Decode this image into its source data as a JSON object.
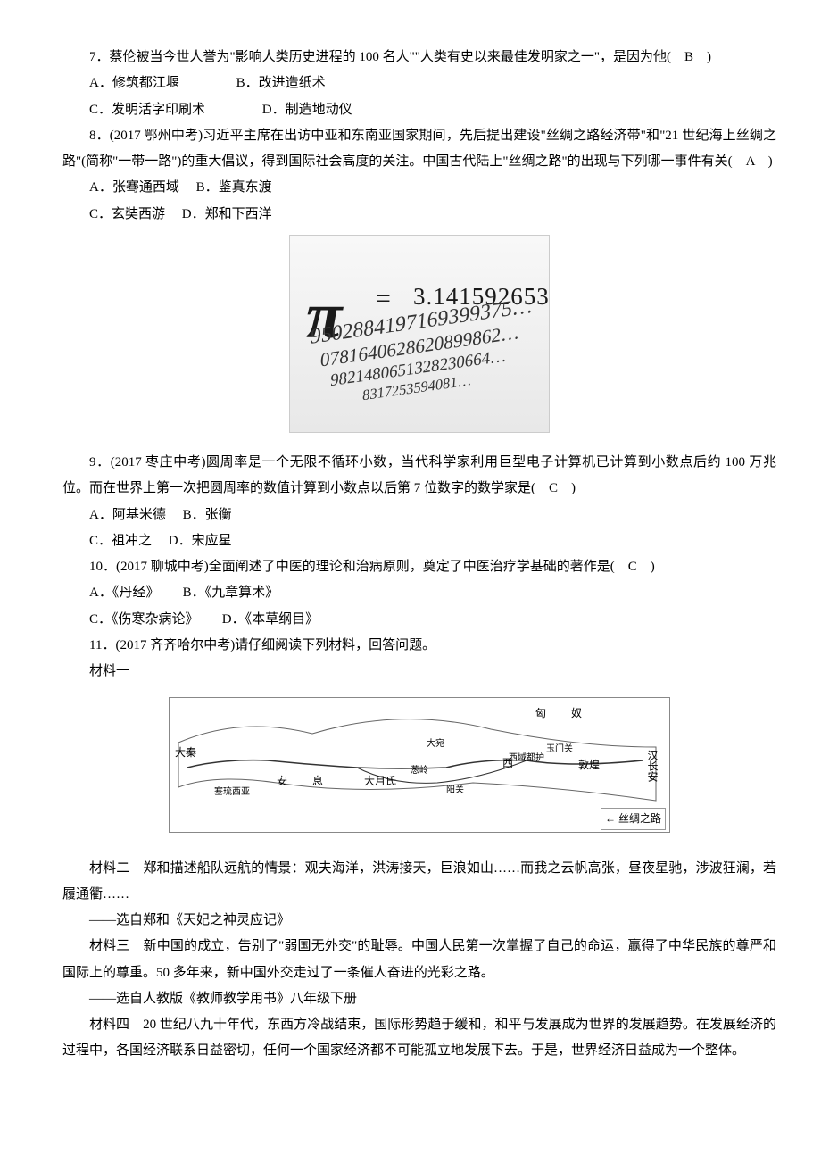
{
  "q7": {
    "stem": "7．蔡伦被当今世人誉为\"影响人类历史进程的 100 名人\"\"人类有史以来最佳发明家之一\"，是因为他(　B　)",
    "A": "A．修筑都江堰",
    "B": "B．改进造纸术",
    "C": "C．发明活字印刷术",
    "D": "D．制造地动仪"
  },
  "q8": {
    "stem": "8．(2017 鄂州中考)习近平主席在出访中亚和东南亚国家期间，先后提出建设\"丝绸之路经济带\"和\"21 世纪海上丝绸之路\"(简称\"一带一路\")的重大倡议，得到国际社会高度的关注。中国古代陆上\"丝绸之路\"的出现与下列哪一事件有关(　A　)",
    "A": "A．张骞通西域",
    "B": "B．鉴真东渡",
    "C": "C．玄奘西游",
    "D": "D．郑和下西洋"
  },
  "pi": {
    "symbol": "π",
    "equals": "=",
    "main_digits": "3.14159265358979…",
    "rows": [
      "9502884197169399375…",
      "0781640628620899862…",
      "9821480651328230664…",
      "8317253594081…"
    ],
    "row_start_size": 24,
    "row_size_step": -2.5,
    "row_color": "#333333"
  },
  "q9": {
    "stem": "9．(2017 枣庄中考)圆周率是一个无限不循环小数，当代科学家利用巨型电子计算机已计算到小数点后约 100 万兆位。而在世界上第一次把圆周率的数值计算到小数点以后第 7 位数字的数学家是(　C　)",
    "A": "A．阿基米德",
    "B": "B．张衡",
    "C": "C．祖冲之",
    "D": "D．宋应星"
  },
  "q10": {
    "stem": "10．(2017 聊城中考)全面阐述了中医的理论和治病原则，奠定了中医治疗学基础的著作是(　C　)",
    "A": "A．《丹经》",
    "B": "B．《九章算术》",
    "C": "C．《伤寒杂病论》",
    "D": "D．《本草纲目》"
  },
  "q11": {
    "stem": "11．(2017 齐齐哈尔中考)请仔细阅读下列材料，回答问题。",
    "m1_label": "材料一",
    "m2": "材料二　郑和描述船队远航的情景：观夫海洋，洪涛接天，巨浪如山……而我之云帆高张，昼夜星驰，涉波狂澜，若履通衢……",
    "m2_src": "——选自郑和《天妃之神灵应记》",
    "m3": "材料三　新中国的成立，告别了\"弱国无外交\"的耻辱。中国人民第一次掌握了自己的命运，赢得了中华民族的尊严和国际上的尊重。50 多年来，新中国外交走过了一条催人奋进的光彩之路。",
    "m3_src": "——选自人教版《教师教学用书》八年级下册",
    "m4": "材料四　20 世纪八九十年代，东西方冷战结束，国际形势趋于缓和，和平与发展成为世界的发展趋势。在发展经济的过程中，各国经济联系日益密切，任何一个国家经济都不可能孤立地发展下去。于是，世界经济日益成为一个整体。"
  },
  "map": {
    "labels": {
      "xiongnu": "匈　奴",
      "daqin": "大秦",
      "changan": "汉长安",
      "dunhuang": "敦煌",
      "xiyu": "西域都护",
      "xi": "西",
      "dayuezhi": "大月氏",
      "anxi": "安　息",
      "yumen": "玉门关",
      "congling": "葱岭",
      "sailiu": "塞琉西亚",
      "yangguan": "阳关",
      "dawan": "大宛"
    },
    "legend_arrow": "←",
    "legend_text": "丝绸之路",
    "outline_color": "#666666",
    "route_color": "#333333"
  }
}
